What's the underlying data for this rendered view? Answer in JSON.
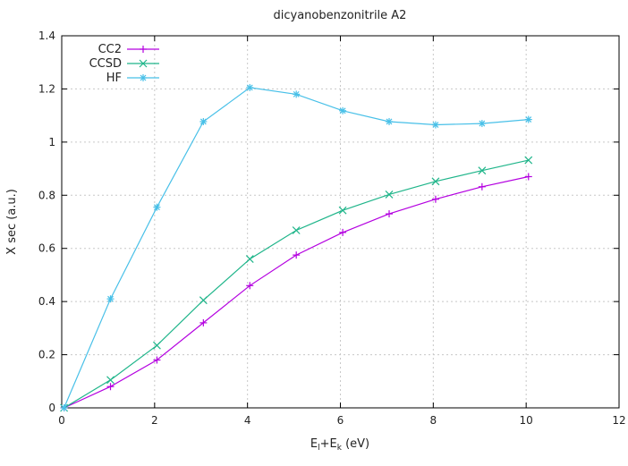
{
  "chart_data": {
    "type": "line",
    "title": "dicyanobenzonitrile A2",
    "xlabel": "E_l+E_k (eV)",
    "xlabel_parts": {
      "base1": "E",
      "sub1": "l",
      "mid": "+E",
      "sub2": "k",
      "tail": " (eV)"
    },
    "ylabel": "X sec (a.u.)",
    "xlim": [
      0,
      12
    ],
    "ylim": [
      0,
      1.4
    ],
    "xticks": [
      "0",
      "2",
      "4",
      "6",
      "8",
      "10",
      "12"
    ],
    "yticks": [
      "0",
      "0.2",
      "0.4",
      "0.6",
      "0.8",
      "1",
      "1.2",
      "1.4"
    ],
    "grid": true,
    "legend_position": "top-left",
    "series": [
      {
        "name": "CC2",
        "color": "#b400e0",
        "marker": "plus",
        "x": [
          0.05,
          1.05,
          2.05,
          3.05,
          4.05,
          5.05,
          6.05,
          7.05,
          8.05,
          9.05,
          10.05
        ],
        "y": [
          0.0,
          0.08,
          0.18,
          0.32,
          0.46,
          0.575,
          0.66,
          0.73,
          0.785,
          0.832,
          0.87
        ]
      },
      {
        "name": "CCSD",
        "color": "#1fb58a",
        "marker": "cross",
        "x": [
          0.05,
          1.05,
          2.05,
          3.05,
          4.05,
          5.05,
          6.05,
          7.05,
          8.05,
          9.05,
          10.05
        ],
        "y": [
          0.0,
          0.105,
          0.235,
          0.405,
          0.56,
          0.668,
          0.743,
          0.803,
          0.852,
          0.893,
          0.932
        ]
      },
      {
        "name": "HF",
        "color": "#48c0e8",
        "marker": "star",
        "x": [
          0.05,
          1.05,
          2.05,
          3.05,
          4.05,
          5.05,
          6.05,
          7.05,
          8.05,
          9.05,
          10.05
        ],
        "y": [
          0.0,
          0.41,
          0.755,
          1.077,
          1.205,
          1.18,
          1.118,
          1.077,
          1.065,
          1.07,
          1.085
        ]
      }
    ]
  }
}
